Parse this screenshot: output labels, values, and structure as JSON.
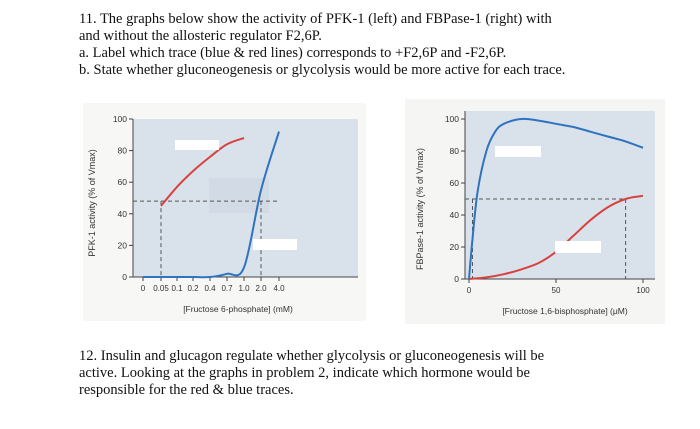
{
  "question11": {
    "line1": "11. The graphs below show the activity of PFK-1 (left) and FBPase-1 (right) with",
    "line2": "and without the allosteric regulator F2,6P.",
    "item_a": "a.  Label which trace (blue & red lines) corresponds to +F2,6P and -F2,6P.",
    "item_b": "b.  State whether gluconeogenesis or glycolysis would be more active for each trace."
  },
  "question12": {
    "line1": "12. Insulin and glucagon regulate whether glycolysis or gluconeogenesis will be",
    "line2": "active. Looking at the graphs in problem 2, indicate which hormone would be",
    "line3": "responsible for the red & blue traces."
  },
  "colors": {
    "red_trace": "#d8413f",
    "blue_trace": "#2f73c0",
    "plot_bg": "#d9e2ea",
    "dashed": "#555555"
  },
  "chart_data": [
    {
      "type": "line",
      "ylabel": "PFK-1 activity (% of Vmax)",
      "xlabel": "[Fructose 6-phosphate] (mM)",
      "x_ticks": [
        "0",
        "0.05",
        "0.1",
        "0.2",
        "0.4",
        "0.7",
        "1.0",
        "2.0",
        "4.0"
      ],
      "y_ticks": [
        0,
        20,
        40,
        60,
        80,
        100
      ],
      "ylim": [
        0,
        100
      ],
      "grid": false,
      "series": [
        {
          "color": "red",
          "x": [
            0.05,
            0.1,
            0.2,
            0.4,
            0.7,
            1.0
          ],
          "y": [
            45,
            57,
            67,
            76,
            84,
            88
          ]
        },
        {
          "color": "blue",
          "x": [
            0,
            0.1,
            0.2,
            0.4,
            0.7,
            1.0,
            2.0,
            4.0
          ],
          "y": [
            0,
            0,
            0,
            0,
            2,
            6,
            55,
            92
          ]
        }
      ],
      "dashed_level": 48
    },
    {
      "type": "line",
      "ylabel": "FBPase-1 activity (% of Vmax)",
      "xlabel": "[Fructose 1,6-bisphosphate] (μM)",
      "x_ticks": [
        "0",
        "50",
        "100"
      ],
      "y_ticks": [
        0,
        20,
        40,
        60,
        80,
        100
      ],
      "xlim": [
        0,
        100
      ],
      "ylim": [
        0,
        100
      ],
      "grid": false,
      "series": [
        {
          "color": "blue",
          "x": [
            0,
            2,
            5,
            10,
            15,
            20,
            30,
            40,
            50,
            60,
            70,
            80,
            90,
            100
          ],
          "y": [
            0,
            25,
            55,
            80,
            92,
            97,
            100,
            99,
            97,
            95,
            92,
            89,
            86,
            82
          ]
        },
        {
          "color": "red",
          "x": [
            0,
            10,
            20,
            30,
            40,
            50,
            60,
            70,
            80,
            90,
            100
          ],
          "y": [
            0,
            1,
            3,
            6,
            10,
            17,
            27,
            37,
            45,
            50,
            52
          ]
        }
      ],
      "dashed_level": 50
    }
  ]
}
